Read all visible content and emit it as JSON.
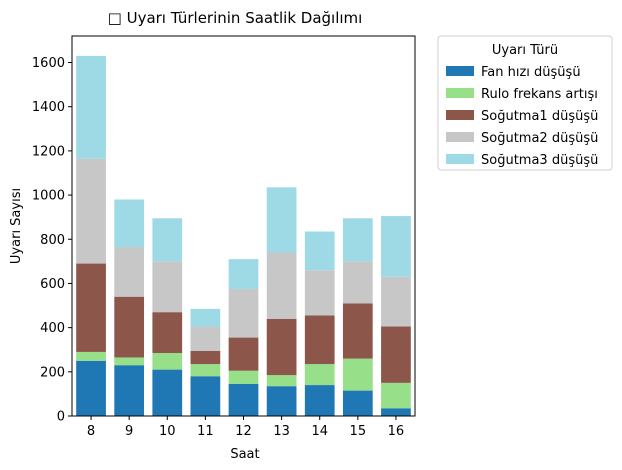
{
  "chart_data": {
    "type": "bar",
    "stacked": true,
    "title": "□ Uyarı Türlerinin Saatlik Dağılımı",
    "xlabel": "Saat",
    "ylabel": "Uyarı Sayısı",
    "categories": [
      "8",
      "9",
      "10",
      "11",
      "12",
      "13",
      "14",
      "15",
      "16"
    ],
    "ylim": [
      0,
      1720
    ],
    "yticks": [
      0,
      200,
      400,
      600,
      800,
      1000,
      1200,
      1400,
      1600
    ],
    "grid": false,
    "legend": {
      "title": "Uyarı Türü",
      "placement": "outside-right-top"
    },
    "series": [
      {
        "name": "Fan hızı düşüşü",
        "color": "#1f77b4",
        "values": [
          250,
          230,
          210,
          180,
          145,
          135,
          140,
          115,
          35
        ]
      },
      {
        "name": "Rulo frekans artışı",
        "color": "#98df8a",
        "values": [
          40,
          35,
          75,
          55,
          60,
          50,
          95,
          145,
          115
        ]
      },
      {
        "name": "Soğutma1 düşüşü",
        "color": "#8c564b",
        "values": [
          400,
          275,
          185,
          60,
          150,
          255,
          220,
          250,
          255
        ]
      },
      {
        "name": "Soğutma2 düşüşü",
        "color": "#c7c7c7",
        "values": [
          475,
          225,
          230,
          110,
          220,
          300,
          205,
          190,
          225
        ]
      },
      {
        "name": "Soğutma3 düşüşü",
        "color": "#9edae5",
        "values": [
          465,
          215,
          195,
          80,
          135,
          295,
          175,
          195,
          275
        ]
      }
    ]
  }
}
